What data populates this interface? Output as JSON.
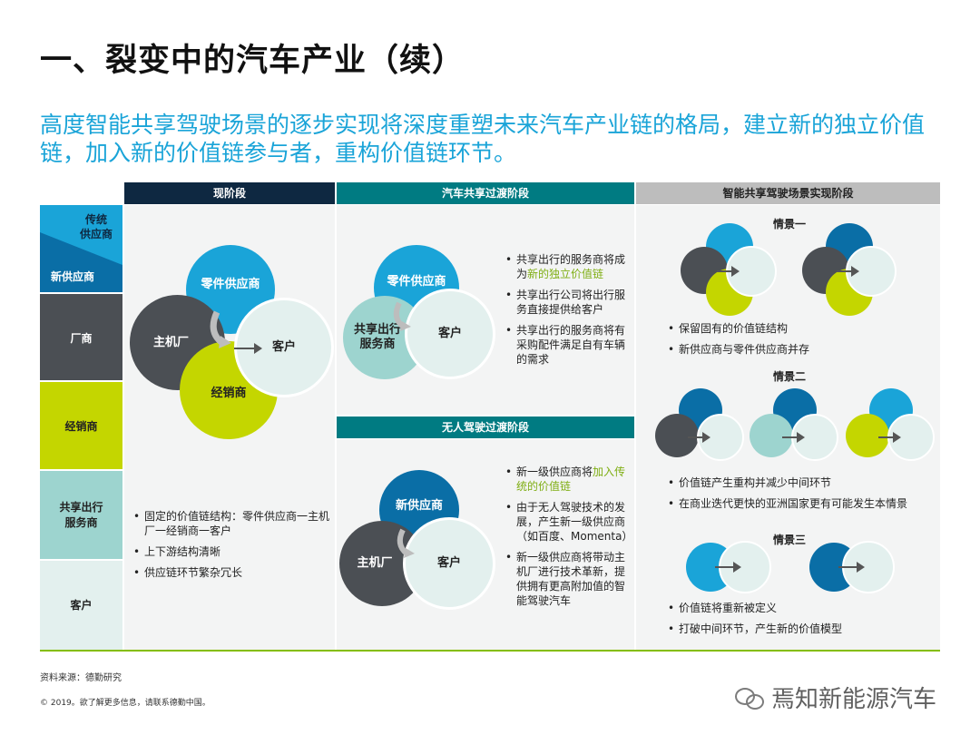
{
  "title": "一、裂变中的汽车产业（续）",
  "subtitle": "高度智能共享驾驶场景的逐步实现将深度重塑未来汽车产业链的格局，建立新的独立价值链，加入新的价值链参与者，重构价值链环节。",
  "headers": {
    "current": "现阶段",
    "sharing": "汽车共享过渡阶段",
    "smart": "智能共享驾驶场景实现阶段",
    "autonomous": "无人驾驶过渡阶段"
  },
  "sidebar": {
    "traditional_supplier": "传统\n供应商",
    "new_supplier": "新供应商",
    "oem": "厂商",
    "dealer": "经销商",
    "sharing_provider": "共享出行\n服务商",
    "customer": "客户"
  },
  "current_stage": {
    "circles": {
      "parts": "零件供应商",
      "oem": "主机厂",
      "customer": "客户",
      "dealer": "经销商"
    },
    "bullets": [
      "固定的价值链结构：零件供应商一主机厂一经销商一客户",
      "上下游结构清晰",
      "供应链环节繁杂冗长"
    ]
  },
  "sharing_stage": {
    "circles": {
      "parts": "零件供应商",
      "provider": "共享出行\n服务商",
      "customer": "客户"
    },
    "bullets": [
      {
        "pre": "共享出行的服务商将成为",
        "hl": "新的独立价值链",
        "post": ""
      },
      {
        "pre": "共享出行公司将出行服务直接提供给客户",
        "hl": "",
        "post": ""
      },
      {
        "pre": "共享出行的服务商将有采购配件满足自有车辆的需求",
        "hl": "",
        "post": ""
      }
    ]
  },
  "autonomous_stage": {
    "circles": {
      "new_supplier": "新供应商",
      "oem": "主机厂",
      "customer": "客户"
    },
    "bullets": [
      {
        "pre": "新一级供应商将",
        "hl": "加入传统的价值链",
        "post": ""
      },
      {
        "pre": "由于无人驾驶技术的发展，产生新一级供应商（如百度、Momenta）",
        "hl": "",
        "post": ""
      },
      {
        "pre": "新一级供应商将带动主机厂进行技术革新，提供拥有更高附加值的智能驾驶汽车",
        "hl": "",
        "post": ""
      }
    ]
  },
  "smart_stage": {
    "scenario1": {
      "title": "情景一",
      "bullets": [
        "保留固有的价值链结构",
        "新供应商与零件供应商并存"
      ]
    },
    "scenario2": {
      "title": "情景二",
      "bullets": [
        "价值链产生重构并减少中间环节",
        "在商业迭代更快的亚洲国家更有可能发生本情景"
      ]
    },
    "scenario3": {
      "title": "情景三",
      "bullets": [
        "价值链将重新被定义",
        "打破中间环节，产生新的价值模型"
      ]
    }
  },
  "footer": {
    "source": "资料来源：德勤研究",
    "copyright": "© 2019。欲了解更多信息，请联系德勤中国。",
    "watermark": "焉知新能源汽车"
  },
  "colors": {
    "traditional_supplier": "#1aa4d8",
    "new_supplier": "#0a6ea6",
    "oem": "#4b4f54",
    "dealer": "#c4d600",
    "sharing_provider": "#9dd4cf",
    "customer": "#e3f0ee",
    "header_dark": "#0e2841",
    "header_teal": "#007b82",
    "header_gray": "#bdbdbd",
    "highlight": "#7fae13"
  }
}
